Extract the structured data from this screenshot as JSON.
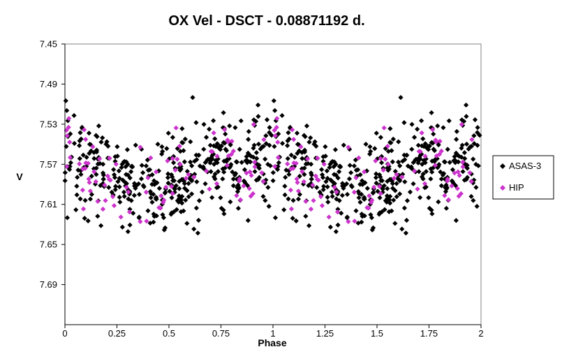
{
  "chart_data": {
    "type": "scatter",
    "title": "OX Vel - DSCT - 0.08871192 d.",
    "xlabel": "Phase",
    "ylabel": "V",
    "xlim": [
      0,
      2
    ],
    "ylim": [
      7.45,
      7.73
    ],
    "y_inverted": true,
    "x_ticks": [
      "0",
      "0.25",
      "0.5",
      "0.75",
      "1",
      "1.25",
      "1.5",
      "1.75",
      "2"
    ],
    "y_ticks": [
      "7.45",
      "7.49",
      "7.53",
      "7.57",
      "7.61",
      "7.65",
      "7.69"
    ],
    "grid": "none",
    "legend_position": "right",
    "marker": "diamond",
    "model": {
      "mean_mag": 7.578,
      "amplitude_mag": 0.014,
      "scatter_mag": 0.024,
      "max_phase": 0.9,
      "period_phase": 1.0
    },
    "series": [
      {
        "name": "ASAS-3",
        "color": "#000000",
        "n_points_per_cycle": 420,
        "seed": 7
      },
      {
        "name": "HIP",
        "color": "#cc33cc",
        "n_points_per_cycle": 95,
        "seed": 23
      }
    ]
  }
}
